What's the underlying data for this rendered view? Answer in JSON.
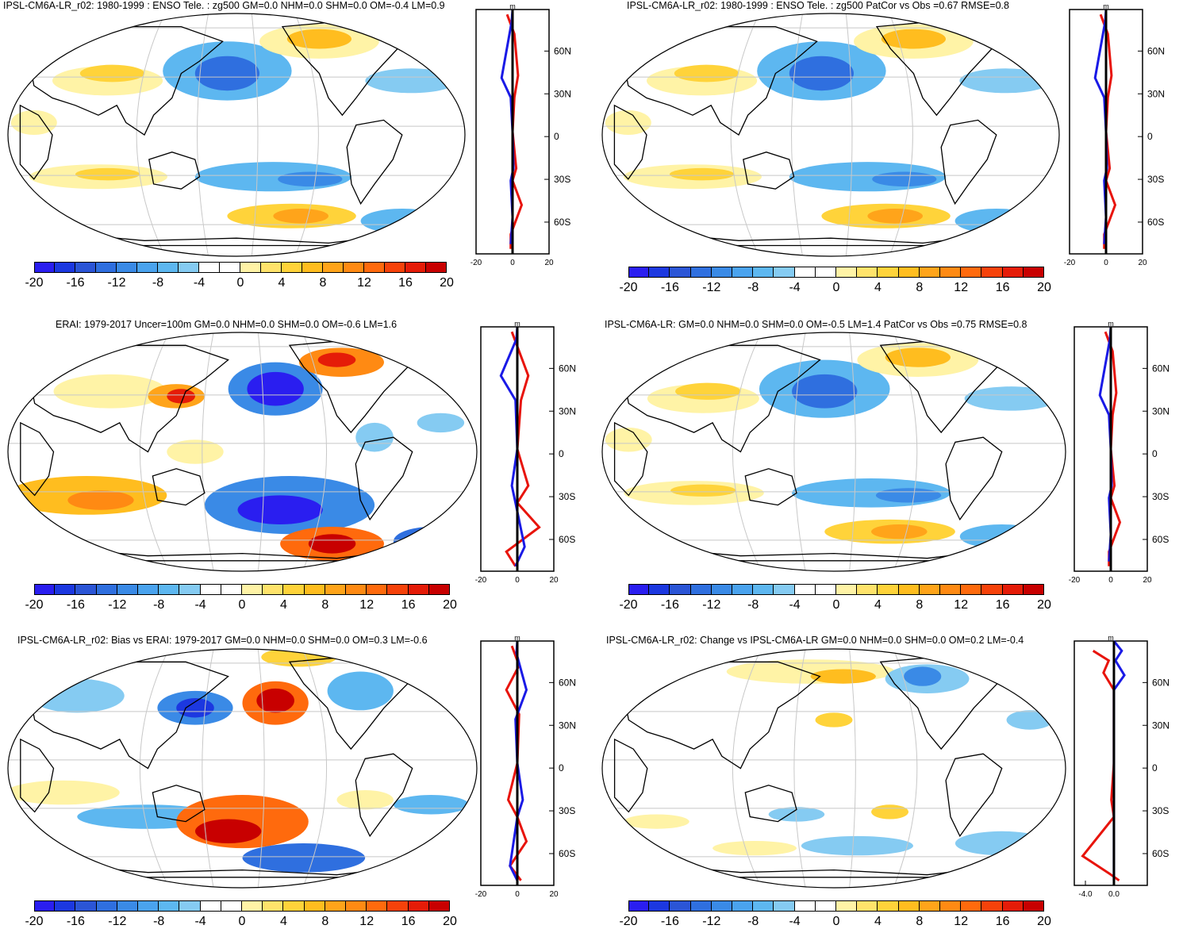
{
  "colorbar": {
    "colors": [
      "#2a1ef0",
      "#1c38e0",
      "#2b55d6",
      "#2f6fdf",
      "#3a8ae6",
      "#4aa3ee",
      "#5db7f0",
      "#85cbf2",
      "#ffffff",
      "#ffffff",
      "#fff3a6",
      "#ffe36b",
      "#ffd33a",
      "#ffbd1f",
      "#ffa41a",
      "#ff8a13",
      "#ff6a0d",
      "#f6420a",
      "#e51c08",
      "#c80000"
    ],
    "tick_labels": [
      "-20",
      "-16",
      "-12",
      "-8",
      "-4",
      "0",
      "4",
      "8",
      "12",
      "16",
      "20"
    ]
  },
  "panels": [
    {
      "id": "p1",
      "title": "IPSL-CM6A-LR_r02: 1980-1999 : ENSO Tele. : zg500 GM=0.0 NHM=0.0 SHM=0.0 OM=-0.4 LM=0.9",
      "zonal": {
        "unit": "m",
        "x_ticks": [
          "-20",
          "0",
          "20"
        ],
        "lat_labels": [
          "60N",
          "30N",
          "0",
          "30S",
          "60S"
        ]
      }
    },
    {
      "id": "p2",
      "title": "IPSL-CM6A-LR_r02: 1980-1999 : ENSO Tele. : zg500 PatCor vs Obs =0.67 RMSE=0.8",
      "zonal": {
        "unit": "m",
        "x_ticks": [
          "-20",
          "0",
          "20"
        ],
        "lat_labels": [
          "60N",
          "30N",
          "0",
          "30S",
          "60S"
        ]
      }
    },
    {
      "id": "p3",
      "title": "ERAI: 1979-2017 Uncer=100m GM=0.0 NHM=0.0 SHM=0.0 OM=-0.6 LM=1.6",
      "zonal": {
        "unit": "m",
        "x_ticks": [
          "-20",
          "0",
          "20"
        ],
        "lat_labels": [
          "60N",
          "30N",
          "0",
          "30S",
          "60S"
        ]
      }
    },
    {
      "id": "p4",
      "title": "IPSL-CM6A-LR: GM=0.0 NHM=0.0 SHM=0.0 OM=-0.5 LM=1.4 PatCor vs Obs =0.75 RMSE=0.8",
      "zonal": {
        "unit": "m",
        "x_ticks": [
          "-20",
          "0",
          "20"
        ],
        "lat_labels": [
          "60N",
          "30N",
          "0",
          "30S",
          "60S"
        ]
      }
    },
    {
      "id": "p5",
      "title": "IPSL-CM6A-LR_r02: Bias vs ERAI: 1979-2017 GM=0.0 NHM=0.0 SHM=0.0 OM=0.3 LM=-0.6",
      "zonal": {
        "unit": "m",
        "x_ticks": [
          "-20",
          "0",
          "20"
        ],
        "lat_labels": [
          "60N",
          "30N",
          "0",
          "30S",
          "60S"
        ]
      }
    },
    {
      "id": "p6",
      "title": "IPSL-CM6A-LR_r02: Change vs IPSL-CM6A-LR GM=0.0 NHM=0.0 SHM=0.0 OM=0.2 LM=-0.4",
      "zonal": {
        "unit": "m",
        "x_ticks": [
          "-4.0",
          "0.0"
        ],
        "lat_labels": [
          "60N",
          "30N",
          "0",
          "30S",
          "60S"
        ]
      }
    }
  ]
}
